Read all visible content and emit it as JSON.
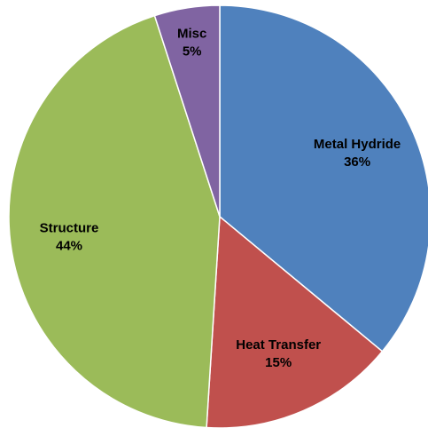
{
  "chart_data": {
    "type": "pie",
    "slices": [
      {
        "label": "Metal Hydride",
        "value": 36,
        "value_label": "36%",
        "color": "#4F81BD"
      },
      {
        "label": "Heat Transfer",
        "value": 15,
        "value_label": "15%",
        "color": "#C0504D"
      },
      {
        "label": "Structure",
        "value": 44,
        "value_label": "44%",
        "color": "#9BBB59"
      },
      {
        "label": "Misc",
        "value": 5,
        "value_label": "5%",
        "color": "#8064A2"
      }
    ],
    "start_angle": "12 o'clock",
    "direction": "clockwise",
    "legend": "none"
  }
}
